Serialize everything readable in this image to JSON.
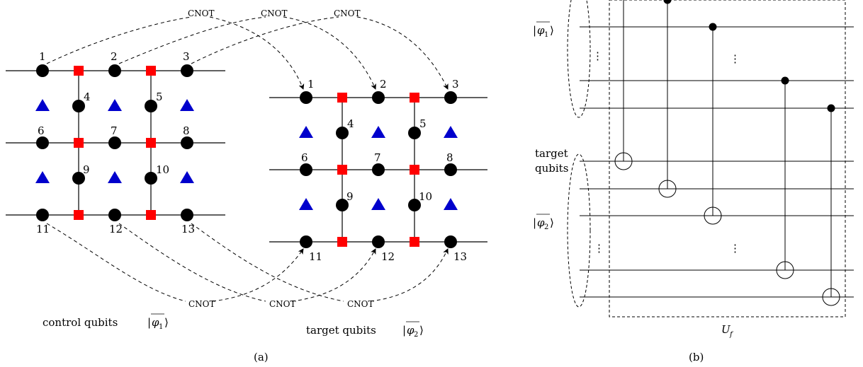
{
  "panel_a": {
    "caption": "(a)",
    "control_label": "control qubits",
    "target_label": "target qubits",
    "phi1": "φ",
    "phi1_sub": "1",
    "phi2": "φ",
    "phi2_sub": "2",
    "cnot_label": "CNOT",
    "node_labels": [
      "1",
      "2",
      "3",
      "4",
      "5",
      "6",
      "7",
      "8",
      "9",
      "10",
      "11",
      "12",
      "13"
    ]
  },
  "panel_b": {
    "caption": "(b)",
    "target_qubits_line1": "target",
    "target_qubits_line2": "qubits",
    "phi1": "φ",
    "phi1_sub": "1",
    "phi2": "φ",
    "phi2_sub": "2",
    "vdots": "⋮",
    "uf": "U",
    "uf_sub": "f"
  },
  "colors": {
    "vertex": "#000000",
    "edge_square": "#ff0000",
    "plaquette": "#0000cc"
  }
}
